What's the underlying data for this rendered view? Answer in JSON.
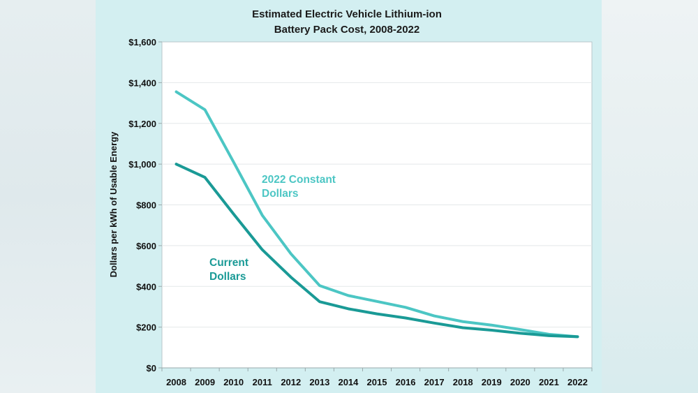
{
  "chart_data": {
    "type": "line",
    "title": "Estimated Electric Vehicle Lithium-ion Battery Pack Cost, 2008-2022",
    "title_lines": [
      "Estimated Electric Vehicle Lithium-ion",
      "Battery Pack Cost, 2008-2022"
    ],
    "xlabel": "",
    "ylabel": "Dollars per kWh of Usable Energy",
    "ylim": [
      0,
      1600
    ],
    "yticks": [
      0,
      200,
      400,
      600,
      800,
      1000,
      1200,
      1400,
      1600
    ],
    "ytick_labels": [
      "$0",
      "$200",
      "$400",
      "$600",
      "$800",
      "$1,000",
      "$1,200",
      "$1,400",
      "$1,600"
    ],
    "categories": [
      "2008",
      "2009",
      "2010",
      "2011",
      "2012",
      "2013",
      "2014",
      "2015",
      "2016",
      "2017",
      "2018",
      "2019",
      "2020",
      "2021",
      "2022"
    ],
    "grid": true,
    "legend": "inline annotations",
    "series": [
      {
        "name": "2022 Constant Dollars",
        "name_lines": [
          "2022 Constant",
          "Dollars"
        ],
        "color": "#4cc6c4",
        "values": [
          1355,
          1267,
          1010,
          749,
          560,
          404,
          355,
          326,
          297,
          255,
          227,
          210,
          188,
          165,
          153
        ]
      },
      {
        "name": "Current Dollars",
        "name_lines": [
          "Current",
          "Dollars"
        ],
        "color": "#1a9a96",
        "values": [
          1000,
          935,
          755,
          580,
          445,
          325,
          290,
          265,
          245,
          220,
          197,
          185,
          170,
          158,
          153
        ]
      }
    ]
  }
}
